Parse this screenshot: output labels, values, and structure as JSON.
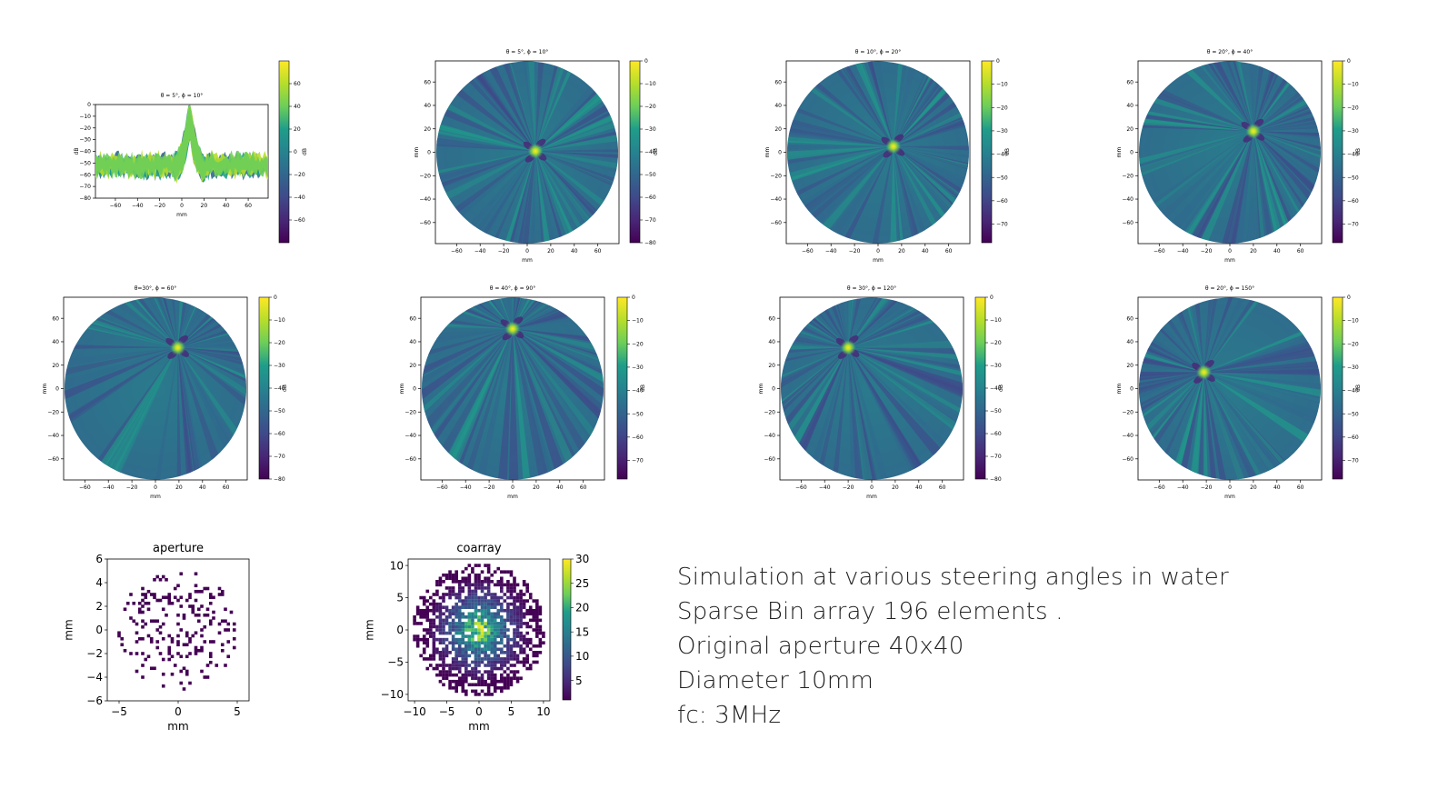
{
  "colors": {
    "viridis": [
      "#440154",
      "#482777",
      "#3f4a8a",
      "#31678e",
      "#26838f",
      "#1f9d8a",
      "#6cce5a",
      "#b6de2b",
      "#fee825"
    ],
    "axis": "#000000"
  },
  "caption": {
    "line1": "Simulation at various steering angles in water",
    "line2": "Sparse Bin array 196 elements .",
    "line3": "Original aperture 40x40",
    "line4": "Diameter 10mm",
    "line5": "fc: 3MHz"
  },
  "chart_data": [
    {
      "id": "profile",
      "type": "area",
      "title": "θ = 5°, ϕ = 10°",
      "xlabel": "mm",
      "ylabel": "dB",
      "colorbar_label": "dB",
      "xlim": [
        -78,
        78
      ],
      "ylim": [
        -80,
        0
      ],
      "xticks": [
        -60,
        -40,
        -20,
        0,
        20,
        40,
        60
      ],
      "yticks": [
        0,
        -10,
        -20,
        -30,
        -40,
        -50,
        -60,
        -70,
        -80
      ],
      "colorbar_range": [
        -80,
        80
      ],
      "colorbar_ticks": [
        60,
        40,
        20,
        0,
        -20,
        -40,
        -60
      ],
      "peak": {
        "x": 7,
        "y": 0
      }
    },
    {
      "id": "beam-1",
      "type": "heatmap",
      "title": "θ = 5°, ϕ = 10°",
      "xlabel": "mm",
      "ylabel": "mm",
      "colorbar_label": "dB",
      "xlim": [
        -78,
        78
      ],
      "ylim": [
        -78,
        78
      ],
      "xticks": [
        -60,
        -40,
        -20,
        0,
        20,
        40,
        60
      ],
      "yticks": [
        60,
        40,
        20,
        0,
        -20,
        -40,
        -60
      ],
      "colorbar_range": [
        -80,
        0
      ],
      "colorbar_ticks": [
        0,
        -10,
        -20,
        -30,
        -40,
        -50,
        -60,
        -70,
        -80
      ],
      "focus": {
        "x": 7,
        "y": 1
      }
    },
    {
      "id": "beam-2",
      "type": "heatmap",
      "title": "θ = 10°, ϕ = 20°",
      "xlabel": "mm",
      "ylabel": "mm",
      "colorbar_label": "dB",
      "xlim": [
        -78,
        78
      ],
      "ylim": [
        -78,
        78
      ],
      "xticks": [
        -60,
        -40,
        -20,
        0,
        20,
        40,
        60
      ],
      "yticks": [
        60,
        40,
        20,
        0,
        -20,
        -40,
        -60
      ],
      "colorbar_range": [
        -78,
        0
      ],
      "colorbar_ticks": [
        0,
        -10,
        -20,
        -30,
        -40,
        -50,
        -60,
        -70
      ],
      "focus": {
        "x": 13,
        "y": 5
      }
    },
    {
      "id": "beam-3",
      "type": "heatmap",
      "title": "θ = 20°, ϕ = 40°",
      "xlabel": "mm",
      "ylabel": "mm",
      "colorbar_label": "dB",
      "xlim": [
        -78,
        78
      ],
      "ylim": [
        -78,
        78
      ],
      "xticks": [
        -60,
        -40,
        -20,
        0,
        20,
        40,
        60
      ],
      "yticks": [
        60,
        40,
        20,
        0,
        -20,
        -40,
        -60
      ],
      "colorbar_range": [
        -78,
        0
      ],
      "colorbar_ticks": [
        0,
        -10,
        -20,
        -30,
        -40,
        -50,
        -60,
        -70
      ],
      "focus": {
        "x": 20,
        "y": 18
      }
    },
    {
      "id": "beam-4",
      "type": "heatmap",
      "title": "θ=30°, ϕ = 60°",
      "xlabel": "mm",
      "ylabel": "mm",
      "colorbar_label": "dB",
      "xlim": [
        -78,
        78
      ],
      "ylim": [
        -78,
        78
      ],
      "xticks": [
        -60,
        -40,
        -20,
        0,
        20,
        40,
        60
      ],
      "yticks": [
        60,
        40,
        20,
        0,
        -20,
        -40,
        -60
      ],
      "colorbar_range": [
        -80,
        0
      ],
      "colorbar_ticks": [
        0,
        -10,
        -20,
        -30,
        -40,
        -50,
        -60,
        -70,
        -80
      ],
      "focus": {
        "x": 19,
        "y": 35
      }
    },
    {
      "id": "beam-5",
      "type": "heatmap",
      "title": "θ = 40°, ϕ = 90°",
      "xlabel": "mm",
      "ylabel": "mm",
      "colorbar_label": "dB",
      "xlim": [
        -78,
        78
      ],
      "ylim": [
        -78,
        78
      ],
      "xticks": [
        -60,
        -40,
        -20,
        0,
        20,
        40,
        60
      ],
      "yticks": [
        60,
        40,
        20,
        0,
        -20,
        -40,
        -60
      ],
      "colorbar_range": [
        -78,
        0
      ],
      "colorbar_ticks": [
        0,
        -10,
        -20,
        -30,
        -40,
        -50,
        -60,
        -70
      ],
      "focus": {
        "x": 0,
        "y": 51
      }
    },
    {
      "id": "beam-6",
      "type": "heatmap",
      "title": "θ = 30°, ϕ = 120°",
      "xlabel": "mm",
      "ylabel": "mm",
      "colorbar_label": "dB",
      "xlim": [
        -78,
        78
      ],
      "ylim": [
        -78,
        78
      ],
      "xticks": [
        -60,
        -40,
        -20,
        0,
        20,
        40,
        60
      ],
      "yticks": [
        60,
        40,
        20,
        0,
        -20,
        -40,
        -60
      ],
      "colorbar_range": [
        -80,
        0
      ],
      "colorbar_ticks": [
        0,
        -10,
        -20,
        -30,
        -40,
        -50,
        -60,
        -70,
        -80
      ],
      "focus": {
        "x": -20,
        "y": 35
      }
    },
    {
      "id": "beam-7",
      "type": "heatmap",
      "title": "θ = 20°, ϕ = 150°",
      "xlabel": "mm",
      "ylabel": "mm",
      "colorbar_label": "dB",
      "xlim": [
        -78,
        78
      ],
      "ylim": [
        -78,
        78
      ],
      "xticks": [
        -60,
        -40,
        -20,
        0,
        20,
        40,
        60
      ],
      "yticks": [
        60,
        40,
        20,
        0,
        -20,
        -40,
        -60
      ],
      "colorbar_range": [
        -78,
        0
      ],
      "colorbar_ticks": [
        0,
        -10,
        -20,
        -30,
        -40,
        -50,
        -60,
        -70
      ],
      "focus": {
        "x": -22,
        "y": 14
      }
    },
    {
      "id": "aperture",
      "type": "scatter",
      "title": "aperture",
      "xlabel": "mm",
      "ylabel": "mm",
      "xlim": [
        -6,
        6
      ],
      "ylim": [
        -6,
        6
      ],
      "xticks": [
        -5,
        0,
        5
      ],
      "yticks": [
        6,
        4,
        2,
        0,
        -2,
        -4,
        -6
      ],
      "element_count": 196
    },
    {
      "id": "coarray",
      "type": "heatmap",
      "title": "coarray",
      "xlabel": "mm",
      "ylabel": "mm",
      "xlim": [
        -11,
        11
      ],
      "ylim": [
        -11,
        11
      ],
      "xticks": [
        -10,
        -5,
        0,
        5,
        10
      ],
      "yticks": [
        10,
        5,
        0,
        -5,
        -10
      ],
      "colorbar_range": [
        1,
        30
      ],
      "colorbar_ticks": [
        30,
        25,
        20,
        15,
        10,
        5
      ]
    }
  ]
}
